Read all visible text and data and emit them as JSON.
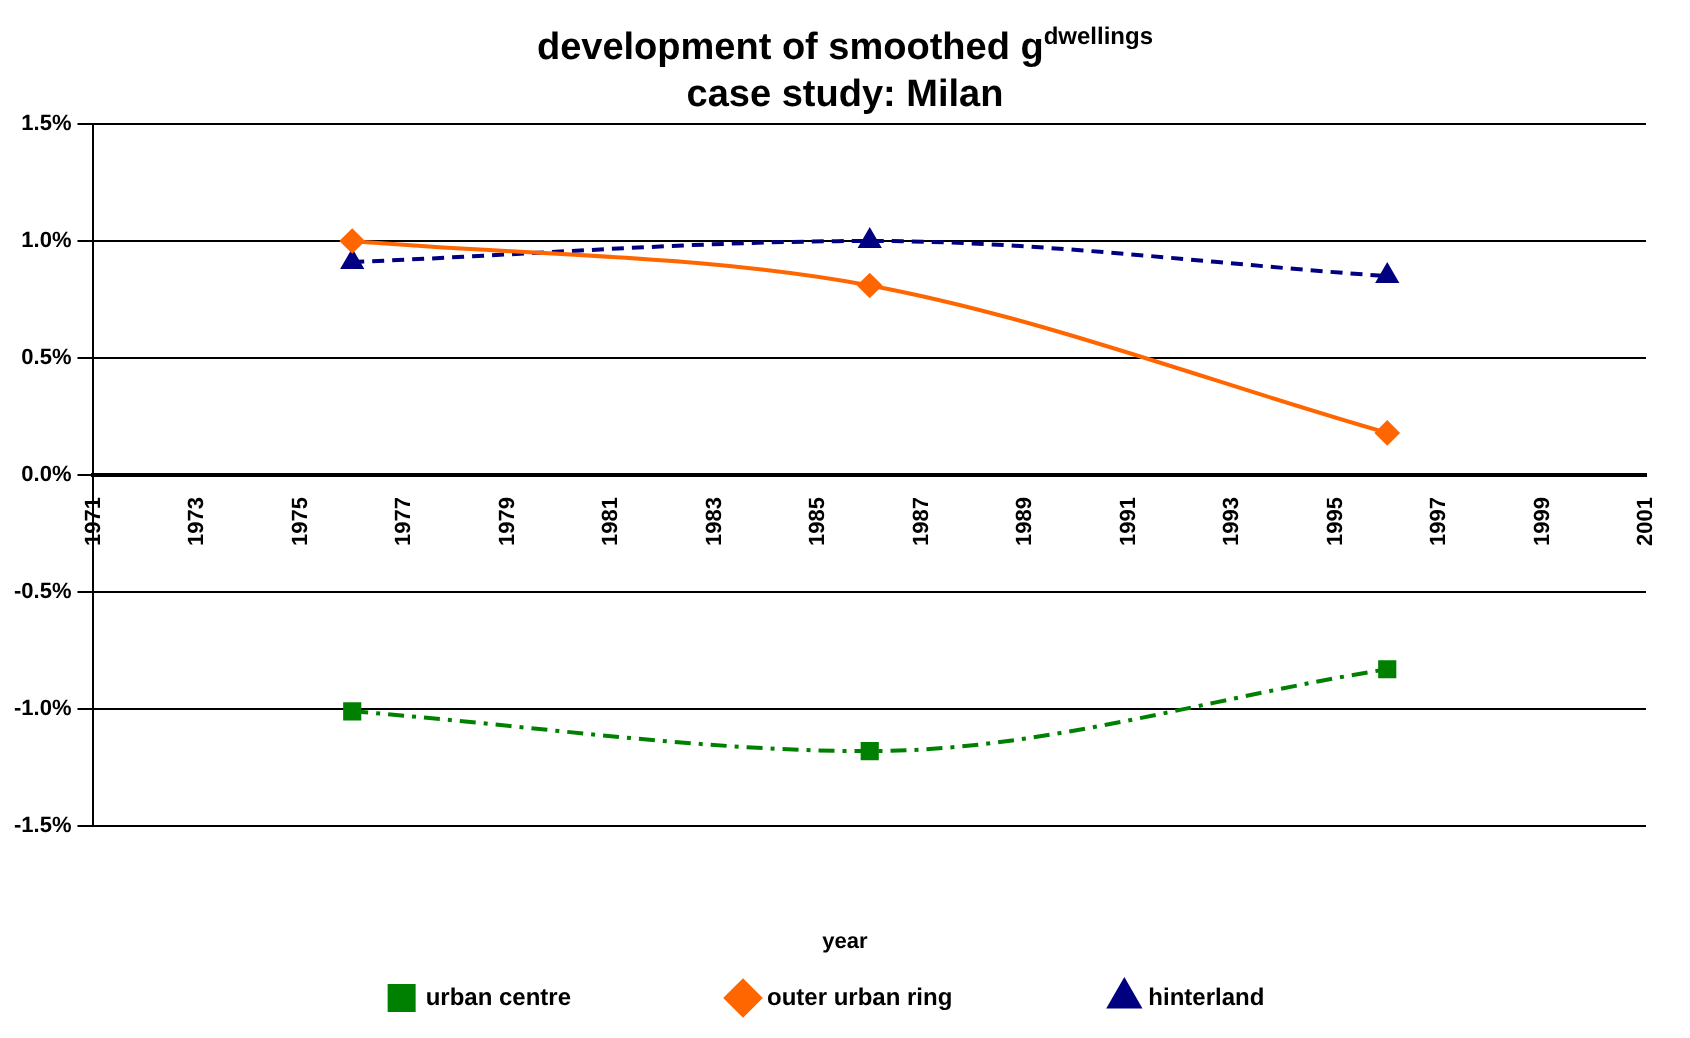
{
  "chart_data": {
    "type": "line",
    "title": "development of smoothed g$^{dwellings}$",
    "subtitle": "case study: Milan",
    "xlabel": "year",
    "x": [
      1976,
      1986,
      1996
    ],
    "xlim": [
      1971,
      2001
    ],
    "xticks": [
      1971,
      1973,
      1975,
      1977,
      1979,
      1981,
      1983,
      1985,
      1987,
      1989,
      1991,
      1993,
      1995,
      1997,
      1999,
      2001
    ],
    "ylim": [
      -1.5,
      1.5
    ],
    "yticks": [
      {
        "value": -1.5,
        "label": "-1.5%"
      },
      {
        "value": -1.0,
        "label": "-1.0%"
      },
      {
        "value": -0.5,
        "label": "-0.5%"
      },
      {
        "value": 0,
        "label": "0.0%"
      },
      {
        "value": 0.5,
        "label": "0.5%"
      },
      {
        "value": 1.0,
        "label": "1.0%"
      },
      {
        "value": 1.5,
        "label": "1.5%"
      }
    ],
    "grid": "y",
    "legend": "bottom",
    "series": [
      {
        "name": "urban centre",
        "color": "#008000",
        "marker": "square",
        "line_style": "dashdot",
        "values": [
          -1.01,
          -1.18,
          -0.83
        ]
      },
      {
        "name": "outer urban ring",
        "color": "#ff6600",
        "marker": "diamond",
        "line_style": "solid",
        "values": [
          1.0,
          0.81,
          0.18
        ]
      },
      {
        "name": "hinterland",
        "color": "#000080",
        "marker": "triangle",
        "line_style": "dashed",
        "values": [
          0.91,
          1.0,
          0.85
        ]
      }
    ]
  }
}
